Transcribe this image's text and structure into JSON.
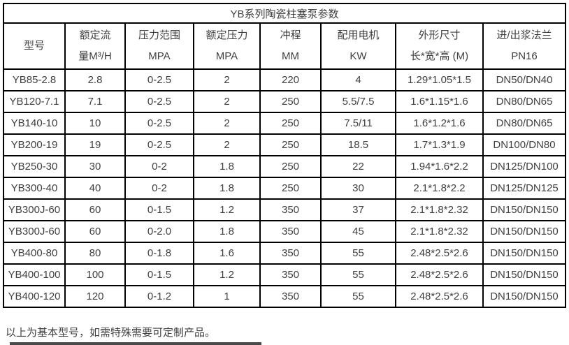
{
  "title": "YB系列陶瓷柱塞泵参数",
  "table": {
    "headers": [
      {
        "line1": "型号",
        "line2": ""
      },
      {
        "line1": "额定流",
        "line2": "量M³/H"
      },
      {
        "line1": "压力范围",
        "line2": "MPA"
      },
      {
        "line1": "额定压力",
        "line2": "MPA"
      },
      {
        "line1": "冲程",
        "line2": "MM"
      },
      {
        "line1": "配用电机",
        "line2": "KW"
      },
      {
        "line1": "外形尺寸",
        "line2": "长*宽*高 (M)"
      },
      {
        "line1": "进/出浆法兰",
        "line2": "PN16"
      }
    ],
    "rows": [
      [
        "YB85-2.8",
        "2.8",
        "0-2.5",
        "2",
        "220",
        "4",
        "1.29*1.05*1.5",
        "DN50/DN40"
      ],
      [
        "YB120-7.1",
        "7.1",
        "0-2.5",
        "2",
        "250",
        "5.5/7.5",
        "1.6*1.15*1.6",
        "DN80/DN65"
      ],
      [
        "YB140-10",
        "10",
        "0-2.5",
        "2",
        "250",
        "7.5/11",
        "1.6*1.2*1.6",
        "DN80/DN65"
      ],
      [
        "YB200-19",
        "19",
        "0-2.5",
        "2",
        "250",
        "18.5",
        "1.7*1.3*1.9",
        "DN100/DN80"
      ],
      [
        "YB250-30",
        "30",
        "0-2",
        "1.8",
        "250",
        "22",
        "1.94*1.6*2.2",
        "DN125/DN100"
      ],
      [
        "YB300-40",
        "40",
        "0-2",
        "1.8",
        "250",
        "30",
        "2.1*1.8*2.2",
        "DN125/DN125"
      ],
      [
        "YB300J-60",
        "60",
        "0-1.5",
        "1.2",
        "350",
        "37",
        "2.1*1.8*2.32",
        "DN150/DN150"
      ],
      [
        "YB300J-60",
        "60",
        "0-2.0",
        "1.8",
        "350",
        "45",
        "2.1*1.8*2.32",
        "DN150/DN150"
      ],
      [
        "YB400-80",
        "80",
        "0-1.8",
        "1.6",
        "350",
        "55",
        "2.48*2.5*2.6",
        "DN150/DN150"
      ],
      [
        "YB400-100",
        "100",
        "0-1.5",
        "1.2",
        "350",
        "55",
        "2.48*2.5*2.6",
        "DN150/DN150"
      ],
      [
        "YB400-120",
        "120",
        "0-1.2",
        "1",
        "350",
        "55",
        "2.48*2.5*2.6",
        "DN150/DN150"
      ]
    ]
  },
  "footnote": "以上为基本型号，如需特殊需要可定制产品。",
  "colors": {
    "border": "#000000",
    "text": "#404040",
    "background": "#ffffff"
  }
}
